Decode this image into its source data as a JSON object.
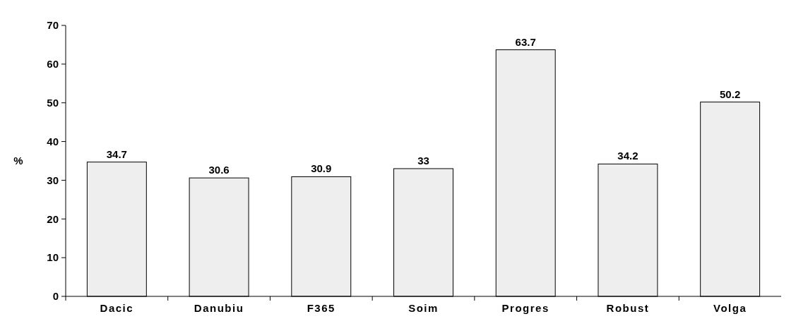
{
  "chart_data": {
    "type": "bar",
    "ylabel": "%",
    "categories": [
      "Dacic",
      "Danubiu",
      "F365",
      "Soim",
      "Progres",
      "Robust",
      "Volga"
    ],
    "values": [
      34.7,
      30.6,
      30.9,
      33,
      63.7,
      34.2,
      50.2
    ],
    "color": "#eeeeee",
    "ylim": [
      0,
      70
    ],
    "yticks": [
      0,
      10,
      20,
      30,
      40,
      50,
      60,
      70
    ],
    "data_labels": true
  }
}
